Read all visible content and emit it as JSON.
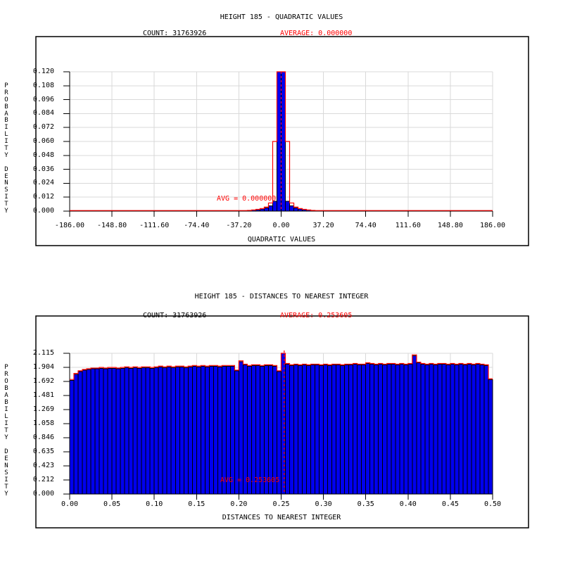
{
  "figure": {
    "background": "#ffffff"
  },
  "colors": {
    "bar_fill": "#0000ee",
    "bar_stroke": "#000000",
    "red": "#ff0000",
    "grid": "#d9d9d9",
    "axis": "#000000",
    "text": "#000000"
  },
  "chart_data": [
    {
      "type": "bar",
      "title": "HEIGHT 185 - QUADRATIC VALUES",
      "count_label": "COUNT: 31763926",
      "average_label": "AVERAGE: 0.000000",
      "avg_annotation": "AVG = 0.000000",
      "xlabel": "QUADRATIC VALUES",
      "ylabel": "PROBABILITY DENSITY",
      "xlim": [
        -186,
        186
      ],
      "ylim": [
        0,
        0.12
      ],
      "x_tick_labels": [
        "-186.00",
        "-148.80",
        "-111.60",
        "-74.40",
        "-37.20",
        "0.00",
        "37.20",
        "74.40",
        "111.60",
        "148.80",
        "186.00"
      ],
      "y_tick_labels": [
        "0.120",
        "0.108",
        "0.096",
        "0.084",
        "0.072",
        "0.060",
        "0.048",
        "0.036",
        "0.024",
        "0.012",
        "0.000"
      ],
      "grid": "on",
      "avg_value": 0.0,
      "bin_width": 3.72,
      "bars": [
        [
          -24.18,
          0.0008
        ],
        [
          -20.46,
          0.0012
        ],
        [
          -16.74,
          0.0018
        ],
        [
          -13.02,
          0.0028
        ],
        [
          -9.3,
          0.0045
        ],
        [
          -5.58,
          0.0085
        ],
        [
          -1.86,
          0.12
        ],
        [
          1.86,
          0.12
        ],
        [
          5.58,
          0.0085
        ],
        [
          9.3,
          0.0045
        ],
        [
          13.02,
          0.0028
        ],
        [
          16.74,
          0.0018
        ],
        [
          20.46,
          0.0012
        ],
        [
          24.18,
          0.0008
        ]
      ],
      "red_steps": [
        [
          -27.9,
          0.0006
        ],
        [
          -24.18,
          0.001
        ],
        [
          -20.46,
          0.0015
        ],
        [
          -16.74,
          0.0022
        ],
        [
          -13.02,
          0.0035
        ],
        [
          -9.3,
          0.007
        ],
        [
          -5.58,
          0.06
        ],
        [
          -1.86,
          0.12
        ],
        [
          1.86,
          0.12
        ],
        [
          5.58,
          0.06
        ],
        [
          9.3,
          0.007
        ],
        [
          13.02,
          0.0035
        ],
        [
          16.74,
          0.0022
        ],
        [
          20.46,
          0.0015
        ],
        [
          24.18,
          0.001
        ],
        [
          27.9,
          0.0006
        ]
      ],
      "red_baseline": 0.0005
    },
    {
      "type": "bar",
      "title": "HEIGHT 185 - DISTANCES TO NEAREST INTEGER",
      "count_label": "COUNT: 31763926",
      "average_label": "AVERAGE: 0.253605",
      "avg_annotation": "AVG = 0.253605",
      "xlabel": "DISTANCES TO NEAREST INTEGER",
      "ylabel": "PROBABILITY DENSITY",
      "xlim": [
        0,
        0.5
      ],
      "ylim": [
        0,
        2.115
      ],
      "x_tick_labels": [
        "0.00",
        "0.05",
        "0.10",
        "0.15",
        "0.20",
        "0.25",
        "0.30",
        "0.35",
        "0.40",
        "0.45",
        "0.50"
      ],
      "y_tick_labels": [
        "2.115",
        "1.904",
        "1.692",
        "1.481",
        "1.269",
        "1.058",
        "0.846",
        "0.635",
        "0.423",
        "0.212",
        "0.000"
      ],
      "grid": "on",
      "avg_value": 0.253605,
      "bin_start": 0.0,
      "bin_width": 0.005,
      "bar_heights": [
        1.71,
        1.8,
        1.84,
        1.86,
        1.87,
        1.88,
        1.88,
        1.89,
        1.88,
        1.89,
        1.89,
        1.88,
        1.89,
        1.9,
        1.89,
        1.9,
        1.89,
        1.9,
        1.9,
        1.89,
        1.9,
        1.91,
        1.9,
        1.91,
        1.9,
        1.91,
        1.91,
        1.9,
        1.91,
        1.92,
        1.91,
        1.92,
        1.91,
        1.92,
        1.92,
        1.91,
        1.92,
        1.92,
        1.92,
        1.85,
        1.99,
        1.94,
        1.92,
        1.93,
        1.93,
        1.92,
        1.93,
        1.93,
        1.92,
        1.84,
        2.16,
        1.95,
        1.93,
        1.94,
        1.93,
        1.94,
        1.93,
        1.94,
        1.94,
        1.93,
        1.94,
        1.93,
        1.94,
        1.94,
        1.93,
        1.94,
        1.94,
        1.95,
        1.94,
        1.94,
        1.96,
        1.95,
        1.94,
        1.95,
        1.94,
        1.95,
        1.95,
        1.94,
        1.95,
        1.94,
        1.95,
        2.08,
        1.97,
        1.95,
        1.94,
        1.95,
        1.94,
        1.95,
        1.95,
        1.94,
        1.95,
        1.94,
        1.95,
        1.94,
        1.95,
        1.94,
        1.95,
        1.94,
        1.93,
        1.72
      ],
      "red_line_offset": 0.012
    }
  ]
}
